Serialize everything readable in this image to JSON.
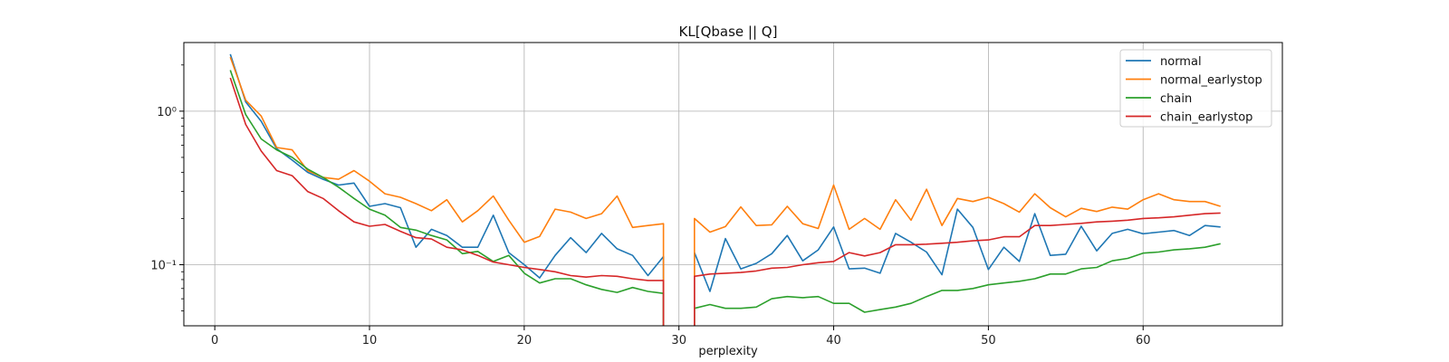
{
  "chart_data": {
    "type": "line",
    "title": "KL[Qbase || Q]",
    "xlabel": "perplexity",
    "ylabel": "",
    "xlim": [
      -2,
      69
    ],
    "ylim": [
      0.04,
      2.8
    ],
    "yscale": "log",
    "xticks": [
      0,
      10,
      20,
      30,
      40,
      50,
      60
    ],
    "yticks": [
      {
        "value": 1.0,
        "label": "10⁰"
      },
      {
        "value": 0.1,
        "label": "10⁻¹"
      }
    ],
    "grid": true,
    "legend_position": "top-right",
    "x": [
      1,
      2,
      3,
      4,
      5,
      6,
      7,
      8,
      9,
      10,
      11,
      12,
      13,
      14,
      15,
      16,
      17,
      18,
      19,
      20,
      21,
      22,
      23,
      24,
      25,
      26,
      27,
      28,
      29,
      30,
      31,
      32,
      33,
      34,
      35,
      36,
      37,
      38,
      39,
      40,
      41,
      42,
      43,
      44,
      45,
      46,
      47,
      48,
      49,
      50,
      51,
      52,
      53,
      54,
      55,
      56,
      57,
      58,
      59,
      60,
      61,
      62,
      63,
      64,
      65
    ],
    "series": [
      {
        "name": "normal",
        "color": "#1f77b4",
        "values": [
          2.35,
          1.15,
          0.86,
          0.57,
          0.48,
          0.4,
          0.36,
          0.33,
          0.34,
          0.24,
          0.25,
          0.235,
          0.13,
          0.17,
          0.155,
          0.13,
          0.13,
          0.21,
          0.12,
          0.1,
          0.082,
          0.115,
          0.15,
          0.12,
          0.16,
          0.127,
          0.115,
          0.085,
          0.113,
          null,
          0.12,
          0.067,
          0.148,
          0.094,
          0.102,
          0.118,
          0.155,
          0.106,
          0.125,
          0.176,
          0.094,
          0.095,
          0.088,
          0.16,
          0.14,
          0.121,
          0.086,
          0.23,
          0.175,
          0.093,
          0.13,
          0.105,
          0.215,
          0.115,
          0.117,
          0.178,
          0.123,
          0.16,
          0.17,
          0.159,
          0.163,
          0.167,
          0.155,
          0.18,
          0.176
        ]
      },
      {
        "name": "normal_earlystop",
        "color": "#ff7f0e",
        "values": [
          2.25,
          1.18,
          0.93,
          0.58,
          0.56,
          0.41,
          0.37,
          0.36,
          0.41,
          0.35,
          0.29,
          0.275,
          0.25,
          0.225,
          0.265,
          0.19,
          0.225,
          0.28,
          0.195,
          0.14,
          0.153,
          0.23,
          0.22,
          0.2,
          0.215,
          0.28,
          0.175,
          0.18,
          0.185,
          null,
          0.2,
          0.163,
          0.177,
          0.238,
          0.18,
          0.182,
          0.24,
          0.185,
          0.172,
          0.33,
          0.17,
          0.2,
          0.17,
          0.265,
          0.195,
          0.31,
          0.18,
          0.27,
          0.258,
          0.275,
          0.25,
          0.22,
          0.29,
          0.235,
          0.205,
          0.233,
          0.222,
          0.237,
          0.23,
          0.265,
          0.29,
          0.265,
          0.258,
          0.258,
          0.24
        ]
      },
      {
        "name": "chain",
        "color": "#2ca02c",
        "values": [
          1.85,
          0.95,
          0.66,
          0.56,
          0.5,
          0.42,
          0.37,
          0.32,
          0.27,
          0.23,
          0.21,
          0.175,
          0.168,
          0.155,
          0.145,
          0.118,
          0.122,
          0.105,
          0.115,
          0.088,
          0.076,
          0.081,
          0.081,
          0.074,
          0.069,
          0.066,
          0.071,
          0.067,
          0.065,
          null,
          0.052,
          0.055,
          0.052,
          0.052,
          0.053,
          0.06,
          0.062,
          0.061,
          0.062,
          0.056,
          0.056,
          0.049,
          0.051,
          0.053,
          0.056,
          0.062,
          0.068,
          0.068,
          0.07,
          0.074,
          0.076,
          0.078,
          0.081,
          0.087,
          0.087,
          0.094,
          0.096,
          0.106,
          0.11,
          0.119,
          0.121,
          0.125,
          0.127,
          0.13,
          0.137
        ]
      },
      {
        "name": "chain_earlystop",
        "color": "#d62728",
        "values": [
          1.65,
          0.82,
          0.55,
          0.41,
          0.38,
          0.3,
          0.27,
          0.225,
          0.19,
          0.178,
          0.183,
          0.165,
          0.15,
          0.147,
          0.13,
          0.125,
          0.115,
          0.104,
          0.1,
          0.096,
          0.093,
          0.09,
          0.085,
          0.083,
          0.085,
          0.084,
          0.081,
          0.079,
          0.079,
          null,
          0.084,
          0.087,
          0.088,
          0.089,
          0.091,
          0.095,
          0.096,
          0.1,
          0.103,
          0.105,
          0.12,
          0.114,
          0.12,
          0.135,
          0.135,
          0.136,
          0.138,
          0.14,
          0.143,
          0.145,
          0.152,
          0.152,
          0.18,
          0.18,
          0.183,
          0.186,
          0.19,
          0.192,
          0.195,
          0.2,
          0.202,
          0.205,
          0.21,
          0.215,
          0.217
        ]
      }
    ]
  }
}
